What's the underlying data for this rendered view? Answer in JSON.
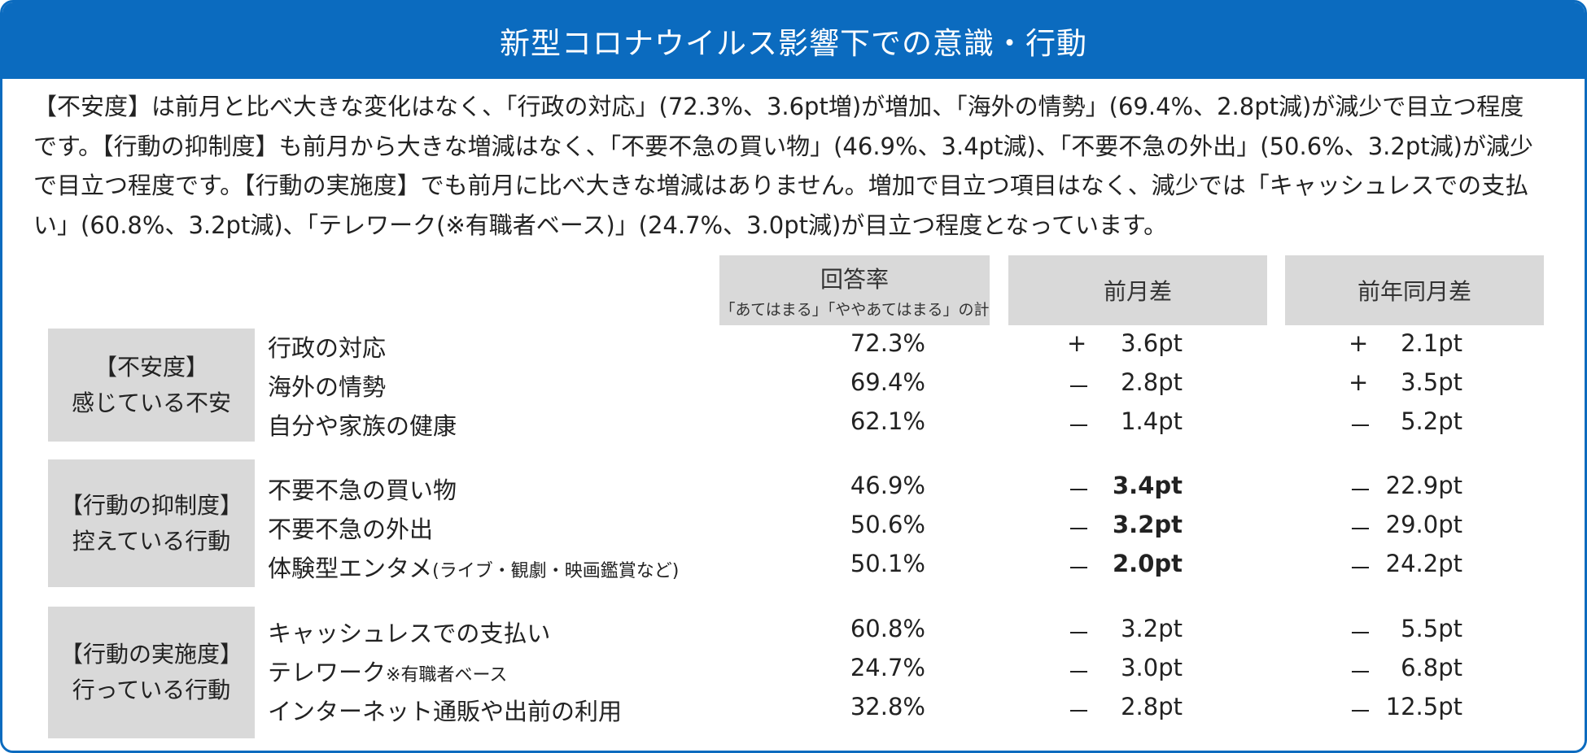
{
  "title": "新型コロナウイルス影響下での意識・行動",
  "summary": "【不安度】は前月と比べ大きな変化はなく、「行政の対応」(72.3%、3.6pt増)が増加、「海外の情勢」(69.4%、2.8pt減)が減少で目立つ程度です。【行動の抑制度】も前月から大きな増減はなく、「不要不急の買い物」(46.9%、3.4pt減)、「不要不急の外出」(50.6%、3.2pt減)が減少で目立つ程度です。【行動の実施度】でも前月に比べ大きな増減はありません。増加で目立つ項目はなく、減少では「キャッシュレスでの支払い」(60.8%、3.2pt減)、「テレワーク(※有職者ベース)」(24.7%、3.0pt減)が目立つ程度となっています。",
  "headers": {
    "rate": "回答率",
    "rate_sub": "「あてはまる」「ややあてはまる」の計",
    "mom": "前月差",
    "yoy": "前年同月差"
  },
  "sections": [
    {
      "label": "【不安度】",
      "sub": "感じている不安",
      "rows": [
        {
          "item": "行政の対応",
          "note": "",
          "rate": "72.3%",
          "s1": "+",
          "v1": "3.6pt",
          "s2": "+",
          "v2": "2.1pt"
        },
        {
          "item": "海外の情勢",
          "note": "",
          "rate": "69.4%",
          "s1": "－",
          "v1": "2.8pt",
          "s2": "+",
          "v2": "3.5pt"
        },
        {
          "item": "自分や家族の健康",
          "note": "",
          "rate": "62.1%",
          "s1": "－",
          "v1": "1.4pt",
          "s2": "－",
          "v2": "5.2pt"
        }
      ]
    },
    {
      "label": "【行動の抑制度】",
      "sub": "控えている行動",
      "rows": [
        {
          "item": "不要不急の買い物",
          "note": "",
          "rate": "46.9%",
          "s1": "－",
          "v1": "3.4pt",
          "s2": "－",
          "v2": "22.9pt"
        },
        {
          "item": "不要不急の外出",
          "note": "",
          "rate": "50.6%",
          "s1": "－",
          "v1": "3.2pt",
          "s2": "－",
          "v2": "29.0pt"
        },
        {
          "item": "体験型エンタメ",
          "note": "(ライブ・観劇・映画鑑賞など)",
          "rate": "50.1%",
          "s1": "－",
          "v1": "2.0pt",
          "s2": "－",
          "v2": "24.2pt"
        }
      ]
    },
    {
      "label": "【行動の実施度】",
      "sub": "行っている行動",
      "rows": [
        {
          "item": "キャッシュレスでの支払い",
          "note": "",
          "rate": "60.8%",
          "s1": "－",
          "v1": "3.2pt",
          "s2": "－",
          "v2": "5.5pt"
        },
        {
          "item": "テレワーク",
          "note": "※有職者ベース",
          "rate": "24.7%",
          "s1": "－",
          "v1": "3.0pt",
          "s2": "－",
          "v2": "6.8pt"
        },
        {
          "item": "インターネット通販や出前の利用",
          "note": "",
          "rate": "32.8%",
          "s1": "－",
          "v1": "2.8pt",
          "s2": "－",
          "v2": "12.5pt"
        }
      ]
    }
  ]
}
